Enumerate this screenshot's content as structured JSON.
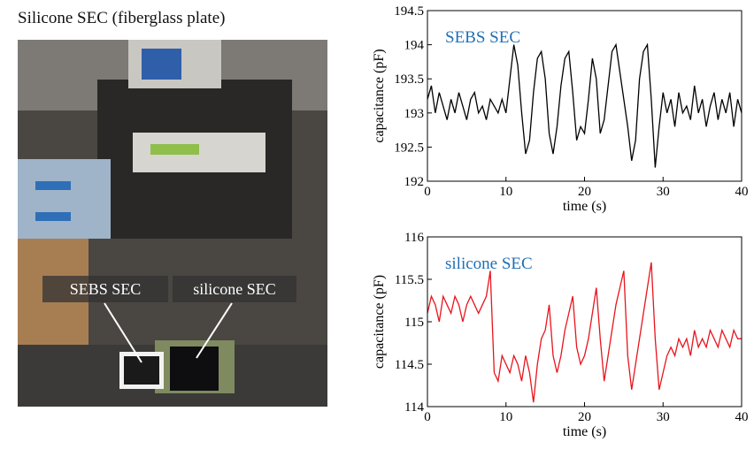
{
  "title": "Silicone SEC (fiberglass plate)",
  "photo_labels": [
    "SEBS SEC",
    "silicone SEC"
  ],
  "chart_data": [
    {
      "type": "line",
      "annotation": "SEBS SEC",
      "annotation_color": "#1f6fb5",
      "xlabel": "time (s)",
      "ylabel": "capacitance (pF)",
      "color": "#000000",
      "xlim": [
        0,
        40
      ],
      "xticks": [
        0,
        10,
        20,
        30,
        40
      ],
      "ylim": [
        192,
        194.5
      ],
      "yticks": [
        192,
        192.5,
        193,
        193.5,
        194,
        194.5
      ],
      "x": [
        0,
        0.5,
        1,
        1.5,
        2,
        2.5,
        3,
        3.5,
        4,
        4.5,
        5,
        5.5,
        6,
        6.5,
        7,
        7.5,
        8,
        8.5,
        9,
        9.5,
        10,
        10.5,
        11,
        11.5,
        12,
        12.5,
        13,
        13.5,
        14,
        14.5,
        15,
        15.5,
        16,
        16.5,
        17,
        17.5,
        18,
        18.5,
        19,
        19.5,
        20,
        20.5,
        21,
        21.5,
        22,
        22.5,
        23,
        23.5,
        24,
        24.5,
        25,
        25.5,
        26,
        26.5,
        27,
        27.5,
        28,
        28.5,
        29,
        29.5,
        30,
        30.5,
        31,
        31.5,
        32,
        32.5,
        33,
        33.5,
        34,
        34.5,
        35,
        35.5,
        36,
        36.5,
        37,
        37.5,
        38,
        38.5,
        39,
        39.5,
        40
      ],
      "values": [
        193.2,
        193.4,
        193.0,
        193.3,
        193.1,
        192.9,
        193.2,
        193.0,
        193.3,
        193.1,
        192.9,
        193.2,
        193.3,
        193.0,
        193.1,
        192.9,
        193.2,
        193.1,
        193.0,
        193.2,
        193.0,
        193.5,
        194.0,
        193.7,
        193.0,
        192.4,
        192.6,
        193.3,
        193.8,
        193.9,
        193.5,
        192.7,
        192.4,
        192.8,
        193.4,
        193.8,
        193.9,
        193.3,
        192.6,
        192.8,
        192.7,
        193.2,
        193.8,
        193.5,
        192.7,
        192.9,
        193.4,
        193.9,
        194.0,
        193.6,
        193.2,
        192.8,
        192.3,
        192.6,
        193.5,
        193.9,
        194.0,
        193.2,
        192.2,
        192.8,
        193.3,
        193.0,
        193.2,
        192.8,
        193.3,
        193.0,
        193.1,
        192.9,
        193.4,
        193.0,
        193.2,
        192.8,
        193.1,
        193.3,
        192.9,
        193.2,
        193.0,
        193.3,
        192.8,
        193.2,
        193.0
      ]
    },
    {
      "type": "line",
      "annotation": "silicone SEC",
      "annotation_color": "#1f6fb5",
      "xlabel": "time (s)",
      "ylabel": "capacitance (pF)",
      "color": "#e8141c",
      "xlim": [
        0,
        40
      ],
      "xticks": [
        0,
        10,
        20,
        30,
        40
      ],
      "ylim": [
        114,
        116
      ],
      "yticks": [
        114,
        114.5,
        115,
        115.5,
        116
      ],
      "x": [
        0,
        0.5,
        1,
        1.5,
        2,
        2.5,
        3,
        3.5,
        4,
        4.5,
        5,
        5.5,
        6,
        6.5,
        7,
        7.5,
        8,
        8.5,
        9,
        9.5,
        10,
        10.5,
        11,
        11.5,
        12,
        12.5,
        13,
        13.5,
        14,
        14.5,
        15,
        15.5,
        16,
        16.5,
        17,
        17.5,
        18,
        18.5,
        19,
        19.5,
        20,
        20.5,
        21,
        21.5,
        22,
        22.5,
        23,
        23.5,
        24,
        24.5,
        25,
        25.5,
        26,
        26.5,
        27,
        27.5,
        28,
        28.5,
        29,
        29.5,
        30,
        30.5,
        31,
        31.5,
        32,
        32.5,
        33,
        33.5,
        34,
        34.5,
        35,
        35.5,
        36,
        36.5,
        37,
        37.5,
        38,
        38.5,
        39,
        39.5,
        40
      ],
      "values": [
        115.1,
        115.3,
        115.2,
        115.0,
        115.3,
        115.2,
        115.1,
        115.3,
        115.2,
        115.0,
        115.2,
        115.3,
        115.2,
        115.1,
        115.2,
        115.3,
        115.6,
        114.4,
        114.3,
        114.6,
        114.5,
        114.4,
        114.6,
        114.5,
        114.3,
        114.6,
        114.4,
        114.05,
        114.5,
        114.8,
        114.9,
        115.2,
        114.6,
        114.4,
        114.6,
        114.9,
        115.1,
        115.3,
        114.7,
        114.5,
        114.6,
        114.8,
        115.1,
        115.4,
        114.8,
        114.3,
        114.6,
        114.9,
        115.2,
        115.4,
        115.6,
        114.6,
        114.2,
        114.5,
        114.8,
        115.1,
        115.4,
        115.7,
        114.8,
        114.2,
        114.4,
        114.6,
        114.7,
        114.6,
        114.8,
        114.7,
        114.8,
        114.6,
        114.9,
        114.7,
        114.8,
        114.7,
        114.9,
        114.8,
        114.7,
        114.9,
        114.8,
        114.7,
        114.9,
        114.8,
        114.8
      ]
    }
  ]
}
